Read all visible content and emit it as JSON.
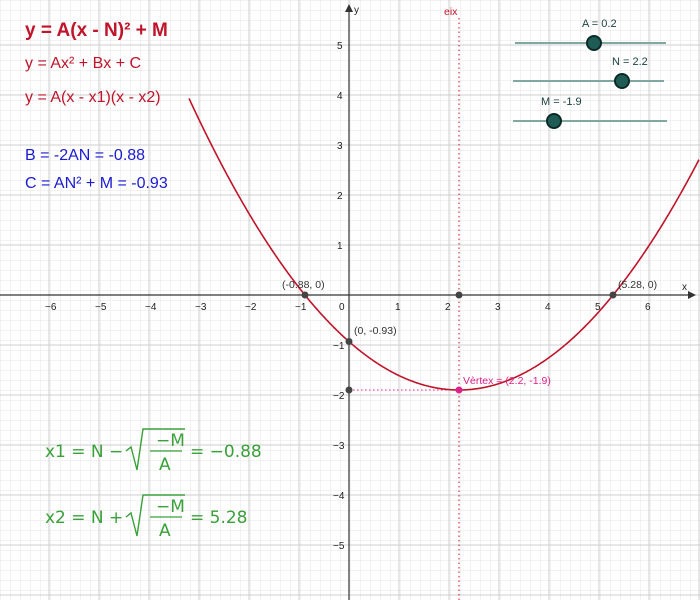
{
  "formulas": {
    "vertex_form": "y = A(x - N)² + M",
    "standard_form": "y = Ax² + Bx + C",
    "factored_form": "y = A(x - x1)(x - x2)",
    "b_expr": "B = -2AN = -0.88",
    "c_expr": "C = AN² + M = -0.93"
  },
  "sliders": [
    {
      "label": "A = 0.2",
      "value": 0.2
    },
    {
      "label": "N = 2.2",
      "value": 2.2
    },
    {
      "label": "M = -1.9",
      "value": -1.9
    }
  ],
  "axes": {
    "x_label": "x",
    "y_label": "y",
    "x_ticks": [
      "−6",
      "−5",
      "−4",
      "−3",
      "−2",
      "−1",
      "0",
      "1",
      "2",
      "3",
      "4",
      "5",
      "6"
    ],
    "y_ticks_pos": [
      "1",
      "2",
      "3",
      "4",
      "5"
    ],
    "y_ticks_neg": [
      "−1",
      "−2",
      "−3",
      "−4",
      "−5"
    ]
  },
  "axis_line_label": "eix",
  "points": {
    "root1": "(-0.88, 0)",
    "root2": "(5.28, 0)",
    "y_intercept": "(0, -0.93)",
    "vertex": "Vèrtex = (2.2, -1.9)"
  },
  "roots": {
    "x1_left": "x1 = N −",
    "x1_right": "= −0.88",
    "x2_left": "x2 = N +",
    "x2_right": "= 5.28",
    "num": "−M",
    "den": "A"
  },
  "params": {
    "A": 0.2,
    "N": 2.2,
    "M": -1.9
  }
}
